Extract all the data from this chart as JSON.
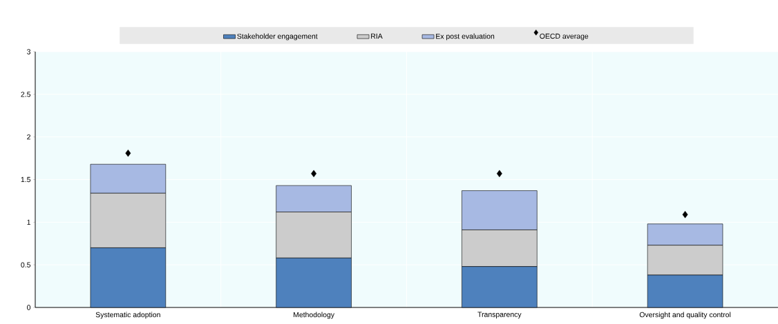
{
  "chart_data": {
    "type": "bar",
    "stacked": true,
    "categories": [
      "Systematic adoption",
      "Methodology",
      "Transparency",
      "Oversight and quality control"
    ],
    "series": [
      {
        "name": "Stakeholder engagement",
        "color": "#4e81bd",
        "values": [
          0.7,
          0.58,
          0.48,
          0.38
        ]
      },
      {
        "name": "RIA",
        "color": "#cccccc",
        "values": [
          0.64,
          0.54,
          0.43,
          0.35
        ]
      },
      {
        "name": "Ex post evaluation",
        "color": "#a7b9e3",
        "values": [
          0.34,
          0.31,
          0.46,
          0.25
        ]
      },
      {
        "name": "OECD average",
        "type": "scatter",
        "marker": "diamond",
        "color": "#000000",
        "x": [
          "Systematic adoption",
          "Methodology",
          "Transparency",
          "Oversight and quality control"
        ],
        "values": [
          1.81,
          1.57,
          1.57,
          1.09
        ]
      }
    ],
    "ylim": [
      0,
      3
    ],
    "yticks": [
      0,
      0.5,
      1,
      1.5,
      2,
      2.5,
      3
    ],
    "grid": true,
    "legend": "top"
  }
}
